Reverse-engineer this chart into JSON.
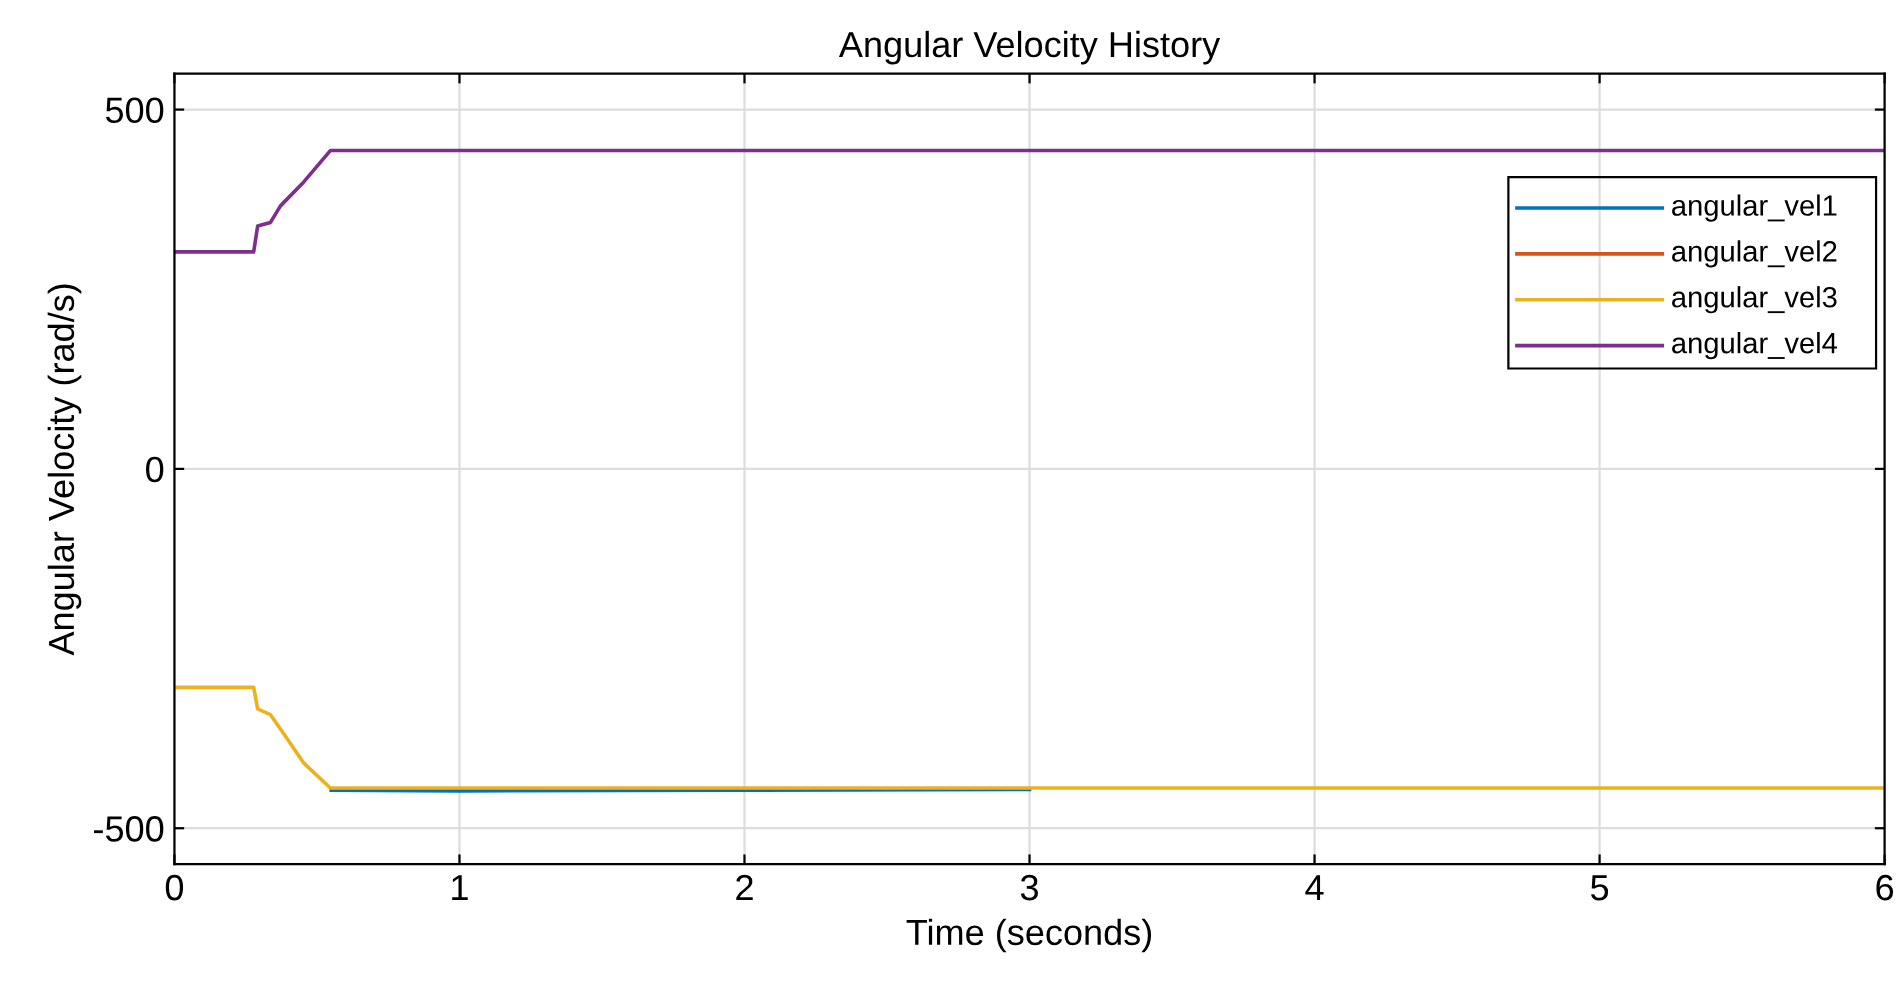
{
  "chart_data": {
    "type": "line",
    "title": "Angular Velocity History",
    "xlabel": "Time (seconds)",
    "ylabel": "Angular Velocity (rad/s)",
    "xlim": [
      0,
      6
    ],
    "xticks": [
      0,
      1,
      2,
      3,
      4,
      5,
      6
    ],
    "ylim": [
      -550,
      550
    ],
    "yticks": [
      -500,
      0,
      500
    ],
    "grid": true,
    "legend": "top right",
    "line_style": "solid",
    "series": [
      {
        "name": "angular_vel1",
        "color": "#0072bd",
        "x": [
          0.55,
          1,
          2,
          3
        ],
        "values": [
          -447,
          -448,
          -447,
          -446
        ]
      },
      {
        "name": "angular_vel2",
        "color": "#d95319"
      },
      {
        "name": "angular_vel3",
        "color": "#edb120",
        "x": [
          0,
          0.278,
          0.292,
          0.337,
          0.372,
          0.453,
          0.547,
          6
        ],
        "values": [
          -304,
          -304,
          -334,
          -342,
          -362,
          -409,
          -444,
          -444
        ]
      },
      {
        "name": "angular_vel4",
        "color": "#7e2f8e",
        "x": [
          0,
          0.278,
          0.292,
          0.337,
          0.372,
          0.453,
          0.547,
          6
        ],
        "values": [
          302,
          302,
          338,
          343,
          366,
          399,
          443,
          443
        ]
      }
    ]
  }
}
